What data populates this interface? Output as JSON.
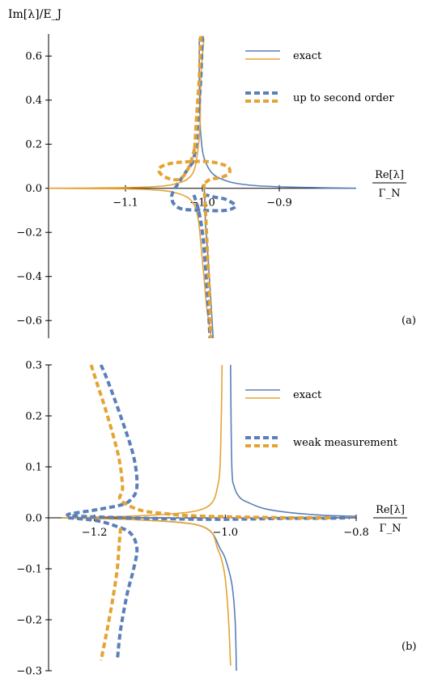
{
  "colors": {
    "blue": "#5b7fb9",
    "orange": "#e5a333"
  },
  "chart_data": [
    {
      "type": "line",
      "panel": "(a)",
      "ylabel": "Im[λ]/E_J",
      "xlabel_num": "Re[λ]",
      "xlabel_den": "Γ_N",
      "xlim": [
        -1.2,
        -0.8
      ],
      "ylim": [
        -0.68,
        0.7
      ],
      "xticks": [
        -1.1,
        -1.0,
        -0.9
      ],
      "xtick_labels": [
        "−1.1",
        "−1.0",
        "−0.9"
      ],
      "yticks": [
        0.6,
        0.4,
        0.2,
        0.0,
        -0.2,
        -0.4,
        -0.6
      ],
      "ytick_labels": [
        "0.6",
        "0.4",
        "0.2",
        "0.0",
        "−0.2",
        "−0.4",
        "−0.6"
      ],
      "legend": [
        {
          "label": "exact",
          "style": "solid"
        },
        {
          "label": "up to second order",
          "style": "dashed"
        }
      ],
      "legend_position": "top-right",
      "series": [
        {
          "color": "blue",
          "style": "solid",
          "x": [
            -1.004,
            -1.004,
            -1.003,
            -1.001,
            -0.998,
            -0.99,
            -0.98,
            -0.96,
            -0.93,
            -0.88,
            -0.8
          ],
          "y": [
            0.68,
            0.5,
            0.3,
            0.2,
            0.14,
            0.08,
            0.05,
            0.025,
            0.012,
            0.005,
            0.0
          ]
        },
        {
          "color": "blue",
          "style": "solid",
          "x": [
            -0.986,
            -0.99,
            -0.993,
            -0.996,
            -0.997,
            -0.9975
          ],
          "y": [
            -0.68,
            -0.45,
            -0.3,
            -0.15,
            -0.05,
            0.0
          ]
        },
        {
          "color": "orange",
          "style": "solid",
          "x": [
            -1.2,
            -1.1,
            -1.06,
            -1.04,
            -1.02,
            -1.01,
            -1.005,
            -1.003,
            -1.002,
            -1.0,
            -0.998
          ],
          "y": [
            0.0,
            0.003,
            0.008,
            0.016,
            0.04,
            0.09,
            0.2,
            0.3,
            0.5,
            0.6,
            0.68
          ]
        },
        {
          "color": "orange",
          "style": "solid",
          "x": [
            -1.2,
            -1.1,
            -1.06,
            -1.04,
            -1.02,
            -1.01,
            -1.005,
            -1.002,
            -0.998,
            -0.994,
            -0.988
          ],
          "y": [
            0.0,
            -0.003,
            -0.008,
            -0.016,
            -0.04,
            -0.08,
            -0.15,
            -0.25,
            -0.4,
            -0.55,
            -0.68
          ]
        },
        {
          "color": "blue",
          "style": "dashed",
          "x": [
            -1.0,
            -1.001,
            -1.002,
            -1.004,
            -1.006,
            -1.008,
            -1.012
          ],
          "y": [
            0.69,
            0.6,
            0.5,
            0.4,
            0.3,
            0.2,
            0.12
          ]
        },
        {
          "color": "blue",
          "style": "dashed",
          "x": [
            -1.012,
            -1.03,
            -1.04,
            -1.03,
            -1.0,
            -0.97,
            -0.957,
            -0.97,
            -0.985,
            -0.995
          ],
          "y": [
            0.12,
            0.03,
            -0.04,
            -0.09,
            -0.1,
            -0.1,
            -0.08,
            -0.05,
            -0.04,
            -0.03
          ]
        },
        {
          "color": "blue",
          "style": "dashed",
          "x": [
            -1.011,
            -1.005,
            -1.0,
            -0.996,
            -0.993,
            -0.99
          ],
          "y": [
            -0.03,
            -0.1,
            -0.2,
            -0.35,
            -0.5,
            -0.68
          ]
        },
        {
          "color": "orange",
          "style": "dashed",
          "x": [
            -1.002,
            -1.003,
            -1.004,
            -1.006,
            -1.008,
            -1.01
          ],
          "y": [
            0.69,
            0.6,
            0.5,
            0.4,
            0.3,
            0.18
          ]
        },
        {
          "color": "orange",
          "style": "dashed",
          "x": [
            -1.01,
            -1.015,
            -1.02,
            -1.03,
            -1.048,
            -1.057,
            -1.045,
            -1.02,
            -0.99,
            -0.968,
            -0.965,
            -0.975,
            -0.99,
            -0.998
          ],
          "y": [
            0.18,
            0.12,
            0.08,
            0.04,
            0.05,
            0.085,
            0.11,
            0.12,
            0.12,
            0.1,
            0.07,
            0.05,
            0.04,
            0.02
          ]
        },
        {
          "color": "orange",
          "style": "dashed",
          "x": [
            -0.998,
            -0.996,
            -0.994,
            -0.992,
            -0.99,
            -0.989
          ],
          "y": [
            0.02,
            -0.1,
            -0.25,
            -0.4,
            -0.55,
            -0.68
          ]
        }
      ]
    },
    {
      "type": "line",
      "panel": "(b)",
      "xlabel_num": "Re[λ]",
      "xlabel_den": "Γ_N",
      "xlim": [
        -1.27,
        -0.8
      ],
      "ylim": [
        -0.3,
        0.3
      ],
      "xticks": [
        -1.2,
        -1.0,
        -0.8
      ],
      "xtick_labels": [
        "−1.2",
        "−1.0",
        "−0.8"
      ],
      "yticks": [
        0.3,
        0.2,
        0.1,
        0.0,
        -0.1,
        -0.2,
        -0.3
      ],
      "ytick_labels": [
        "0.3",
        "0.2",
        "0.1",
        "0.0",
        "−0.1",
        "−0.2",
        "−0.3"
      ],
      "legend": [
        {
          "label": "exact",
          "style": "solid"
        },
        {
          "label": "weak measurement",
          "style": "dashed"
        }
      ],
      "legend_position": "top-right",
      "series": [
        {
          "color": "blue",
          "style": "solid",
          "x": [
            -0.992,
            -0.99,
            -0.986,
            -0.978,
            -0.965,
            -0.94,
            -0.9,
            -0.85,
            -0.8
          ],
          "y": [
            0.3,
            0.1,
            0.06,
            0.04,
            0.03,
            0.018,
            0.01,
            0.005,
            0.003
          ]
        },
        {
          "color": "blue",
          "style": "solid",
          "x": [
            -1.25,
            -1.15,
            -1.08,
            -1.04,
            -1.02,
            -1.008,
            -1.0,
            -0.99,
            -0.985,
            -0.983
          ],
          "y": [
            0.0,
            -0.003,
            -0.008,
            -0.015,
            -0.03,
            -0.06,
            -0.08,
            -0.13,
            -0.2,
            -0.3
          ]
        },
        {
          "color": "orange",
          "style": "solid",
          "x": [
            -1.25,
            -1.15,
            -1.08,
            -1.04,
            -1.02,
            -1.012,
            -1.008,
            -1.006,
            -1.005
          ],
          "y": [
            0.0,
            0.003,
            0.008,
            0.015,
            0.03,
            0.06,
            0.1,
            0.2,
            0.3
          ]
        },
        {
          "color": "orange",
          "style": "solid",
          "x": [
            -1.25,
            -1.15,
            -1.08,
            -1.04,
            -1.02,
            -1.012,
            -1.006,
            -1.0,
            -0.995,
            -0.992
          ],
          "y": [
            0.0,
            -0.003,
            -0.008,
            -0.015,
            -0.03,
            -0.06,
            -0.08,
            -0.12,
            -0.2,
            -0.29
          ]
        },
        {
          "color": "blue",
          "style": "dashed",
          "x": [
            -1.19,
            -1.18,
            -1.16,
            -1.14,
            -1.135,
            -1.145,
            -1.16,
            -1.2,
            -1.24,
            -1.15,
            -1.08,
            -1.02,
            -0.95,
            -0.9,
            -0.85,
            -0.81
          ],
          "y": [
            0.3,
            0.27,
            0.2,
            0.12,
            0.06,
            0.035,
            0.025,
            0.015,
            0.005,
            0.0,
            -0.002,
            -0.003,
            -0.002,
            -0.001,
            -0.001,
            0.0
          ]
        },
        {
          "color": "blue",
          "style": "dashed",
          "x": [
            -1.24,
            -1.2,
            -1.17,
            -1.145,
            -1.135,
            -1.14,
            -1.15,
            -1.16,
            -1.165
          ],
          "y": [
            0.0,
            -0.005,
            -0.015,
            -0.03,
            -0.06,
            -0.1,
            -0.15,
            -0.22,
            -0.28
          ]
        },
        {
          "color": "orange",
          "style": "dashed",
          "x": [
            -1.205,
            -1.195,
            -1.18,
            -1.163,
            -1.157,
            -1.16,
            -1.13,
            -1.09,
            -1.05,
            -1.0,
            -0.95,
            -0.9,
            -0.84
          ],
          "y": [
            0.3,
            0.26,
            0.2,
            0.12,
            0.06,
            0.035,
            0.015,
            0.008,
            0.004,
            0.002,
            0.001,
            0.0,
            0.0
          ]
        },
        {
          "color": "orange",
          "style": "dashed",
          "x": [
            -1.16,
            -1.162,
            -1.165,
            -1.172,
            -1.182,
            -1.19
          ],
          "y": [
            -0.02,
            -0.05,
            -0.1,
            -0.16,
            -0.23,
            -0.28
          ]
        }
      ]
    }
  ]
}
